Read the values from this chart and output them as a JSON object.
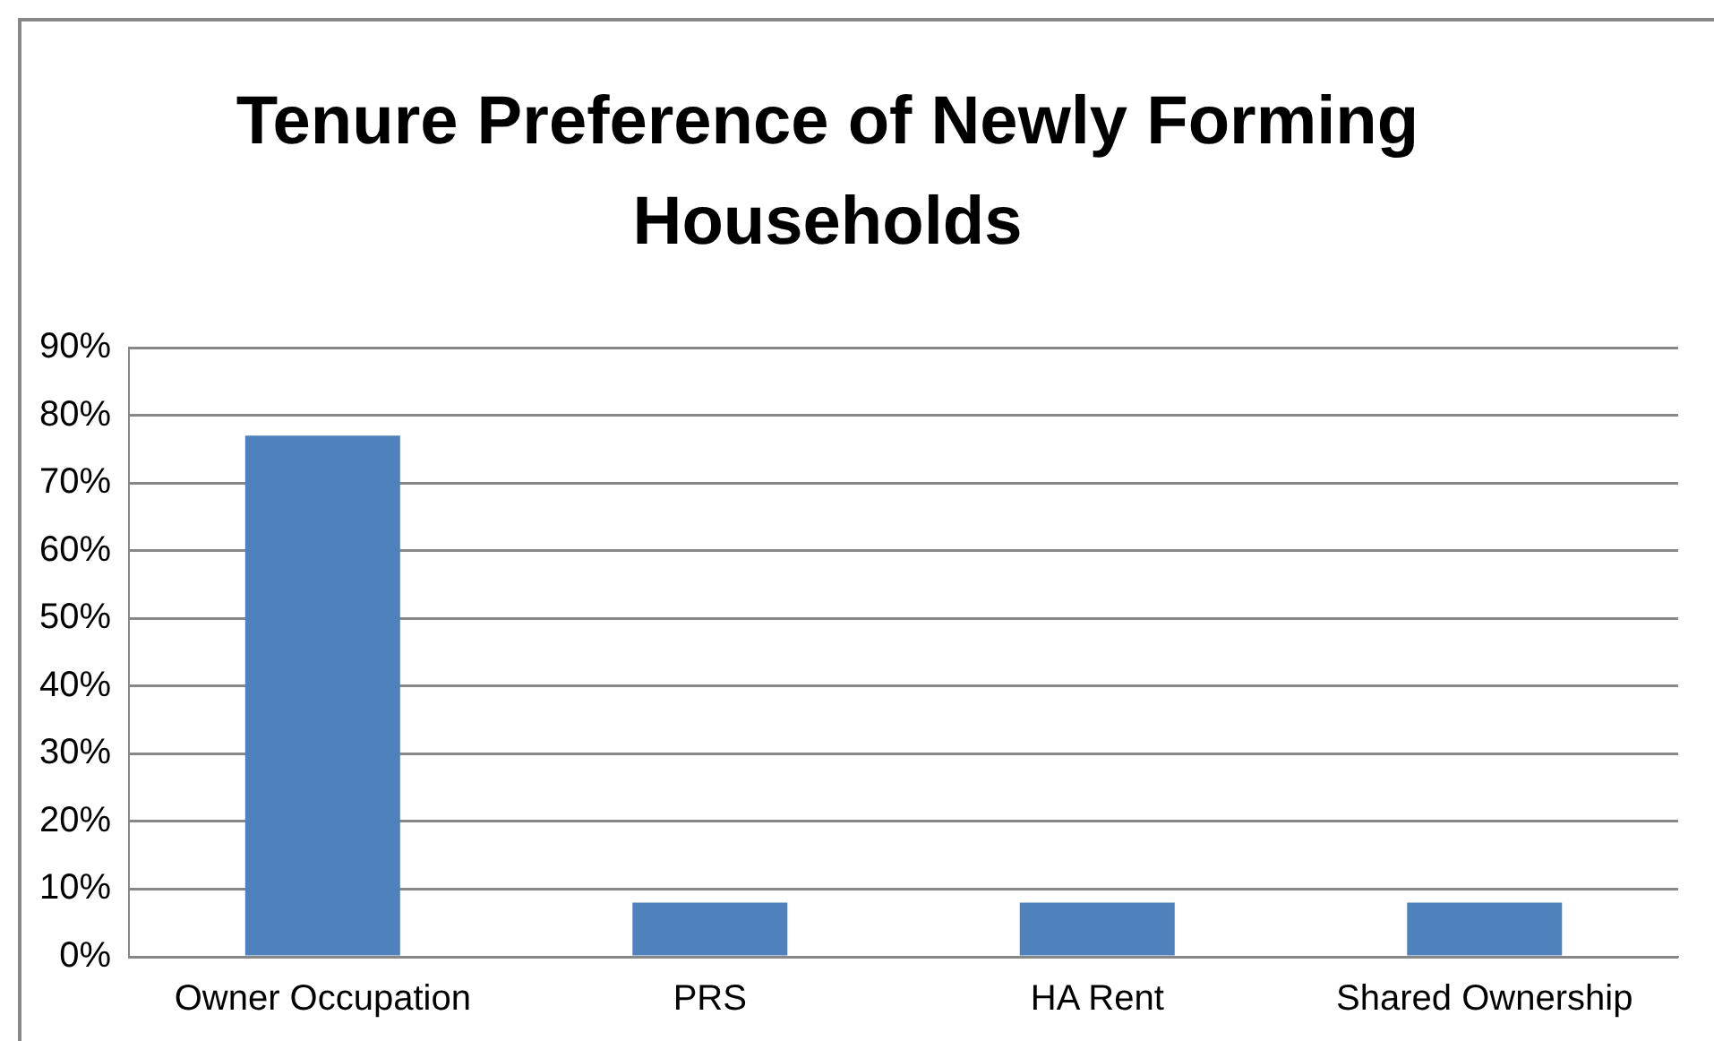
{
  "chart_data": {
    "type": "bar",
    "title": "Tenure Preference of Newly Forming Households",
    "categories": [
      "Owner Occupation",
      "PRS",
      "HA Rent",
      "Shared Ownership"
    ],
    "values": [
      77,
      8,
      8,
      8
    ],
    "color": "#4f81bd",
    "ylim": [
      0,
      90
    ],
    "yticks": [
      {
        "value": 0,
        "label": "0%"
      },
      {
        "value": 10,
        "label": "10%"
      },
      {
        "value": 20,
        "label": "20%"
      },
      {
        "value": 30,
        "label": "30%"
      },
      {
        "value": 40,
        "label": "40%"
      },
      {
        "value": 50,
        "label": "50%"
      },
      {
        "value": 60,
        "label": "60%"
      },
      {
        "value": 70,
        "label": "70%"
      },
      {
        "value": 80,
        "label": "80%"
      },
      {
        "value": 90,
        "label": "90%"
      }
    ],
    "grid": "y",
    "legend": false
  }
}
